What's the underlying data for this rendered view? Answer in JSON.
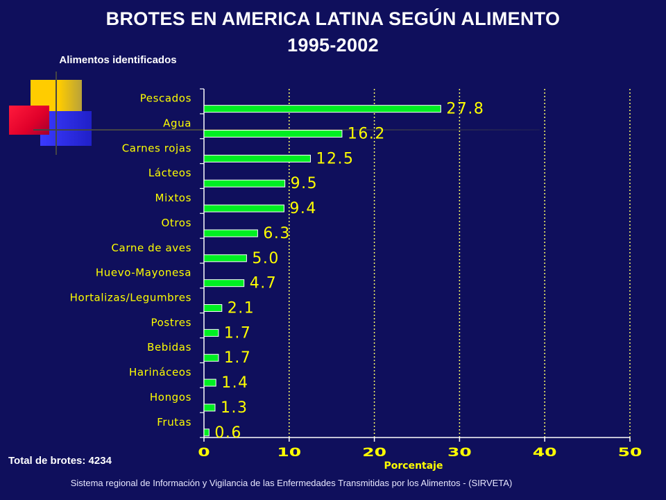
{
  "header": {
    "title_line1": "BROTES EN AMERICA LATINA SEGÚN ALIMENTO",
    "title_line2": "1995-2002",
    "subtitle": "Alimentos identificados"
  },
  "total_label": "Total de brotes: 4234",
  "footer": "Sistema regional de  Información y Vigilancia de las Enfermedades Transmitidas por los Alimentos - (SIRVETA)",
  "colors": {
    "background": "#0f0f5c",
    "bar": "#00ee22",
    "text": "#ffffff"
  },
  "chart_data": {
    "type": "bar",
    "orientation": "horizontal",
    "title": "BROTES EN AMERICA LATINA SEGÚN ALIMENTO 1995-2002",
    "ylabel": "Alimentos identificados",
    "xlabel": "Porcentaje",
    "xlim": [
      0,
      50
    ],
    "xticks": [
      0,
      10,
      20,
      30,
      40,
      50
    ],
    "grid": "vertical dotted",
    "categories": [
      "Pescados",
      "Agua",
      "Carnes rojas",
      "Lácteos",
      "Mixtos",
      "Otros",
      "Carne de aves",
      "Huevo-Mayonesa",
      "Hortalizas/Legumbres",
      "Postres",
      "Bebidas",
      "Harináceos",
      "Hongos",
      "Frutas"
    ],
    "values": [
      27.8,
      16.2,
      12.5,
      9.5,
      9.4,
      6.3,
      5.0,
      4.7,
      2.1,
      1.7,
      1.7,
      1.4,
      1.3,
      0.6
    ],
    "data_labels": [
      "27.8",
      "16.2",
      "12.5",
      "9.5",
      "9.4",
      "6.3",
      "5.0",
      "4.7",
      "2.1",
      "1.7",
      "1.7",
      "1.4",
      "1.3",
      "0.6"
    ]
  }
}
